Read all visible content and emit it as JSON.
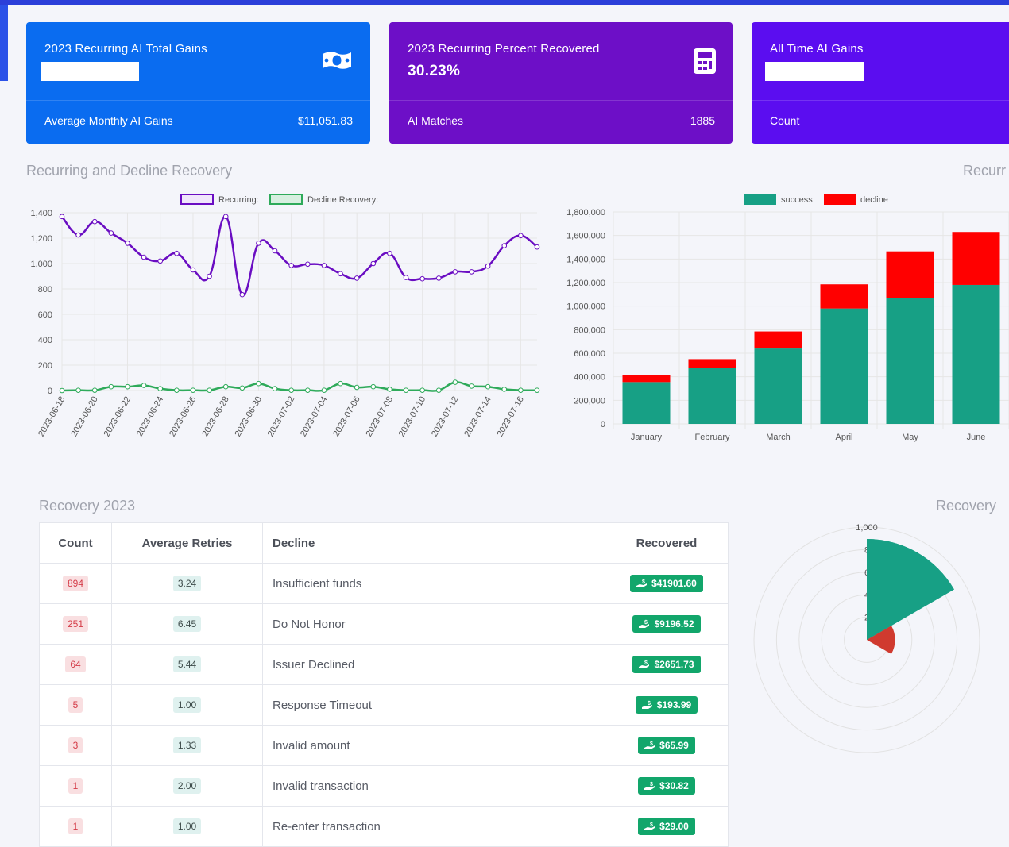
{
  "cards": [
    {
      "title": "2023 Recurring AI Total Gains",
      "value": "",
      "foot_label": "Average Monthly AI Gains",
      "foot_value": "$11,051.83",
      "icon": "money-bill-icon",
      "color": "#0a6cf0"
    },
    {
      "title": "2023 Recurring Percent Recovered",
      "value": "30.23%",
      "foot_label": "AI Matches",
      "foot_value": "1885",
      "icon": "calculator-icon",
      "color": "#6d0fc7"
    },
    {
      "title": "All Time AI Gains",
      "value": "",
      "foot_label": "Count",
      "foot_value": "",
      "icon": "",
      "color": "#5b0df0"
    }
  ],
  "sections": {
    "line_title": "Recurring and Decline Recovery",
    "bar_title": "Recurr",
    "table_title": "Recovery 2023",
    "polar_title": "Recovery"
  },
  "chart_data": [
    {
      "type": "line",
      "legend": [
        "Recurring:",
        "Decline Recovery:"
      ],
      "x": [
        "2023-06-18",
        "2023-06-19",
        "2023-06-20",
        "2023-06-21",
        "2023-06-22",
        "2023-06-23",
        "2023-06-24",
        "2023-06-25",
        "2023-06-26",
        "2023-06-27",
        "2023-06-28",
        "2023-06-29",
        "2023-06-30",
        "2023-07-01",
        "2023-07-02",
        "2023-07-03",
        "2023-07-04",
        "2023-07-05",
        "2023-07-06",
        "2023-07-07",
        "2023-07-08",
        "2023-07-09",
        "2023-07-10",
        "2023-07-11",
        "2023-07-12",
        "2023-07-13",
        "2023-07-14",
        "2023-07-15",
        "2023-07-16",
        "2023-07-17"
      ],
      "x_tick_labels": [
        "2023-06-18",
        "2023-06-20",
        "2023-06-22",
        "2023-06-24",
        "2023-06-26",
        "2023-06-28",
        "2023-06-30",
        "2023-07-02",
        "2023-07-04",
        "2023-07-06",
        "2023-07-08",
        "2023-07-10",
        "2023-07-12",
        "2023-07-14",
        "2023-07-16"
      ],
      "y_ticks": [
        "0",
        "200",
        "400",
        "600",
        "800",
        "1,000",
        "1,200",
        "1,400"
      ],
      "ylim": [
        0,
        1400
      ],
      "series": [
        {
          "name": "Recurring:",
          "color": "#6a0dc2",
          "values": [
            1370,
            1225,
            1330,
            1240,
            1160,
            1050,
            1020,
            1080,
            950,
            900,
            1370,
            755,
            1160,
            1100,
            985,
            995,
            985,
            920,
            885,
            1000,
            1080,
            890,
            880,
            885,
            935,
            935,
            980,
            1140,
            1220,
            1130
          ]
        },
        {
          "name": "Decline Recovery:",
          "color": "#2eaa5a",
          "values": [
            0,
            2,
            2,
            30,
            30,
            40,
            15,
            2,
            2,
            2,
            30,
            20,
            55,
            15,
            2,
            2,
            2,
            55,
            25,
            30,
            10,
            2,
            2,
            2,
            65,
            35,
            30,
            10,
            2,
            2
          ]
        }
      ],
      "grid": true,
      "legend_position": "top"
    },
    {
      "type": "bar",
      "stacked": true,
      "legend": [
        "success",
        "decline"
      ],
      "categories": [
        "January",
        "February",
        "March",
        "April",
        "May",
        "June"
      ],
      "series": [
        {
          "name": "success",
          "color": "#17a085",
          "values": [
            355000,
            475000,
            640000,
            980000,
            1070000,
            1180000
          ]
        },
        {
          "name": "decline",
          "color": "#ff0000",
          "values": [
            60000,
            75000,
            145000,
            205000,
            395000,
            450000
          ]
        }
      ],
      "y_ticks": [
        "0",
        "200,000",
        "400,000",
        "600,000",
        "800,000",
        "1,000,000",
        "1,200,000",
        "1,400,000",
        "1,600,000",
        "1,800,000"
      ],
      "ylim": [
        0,
        1800000
      ],
      "grid": true,
      "legend_position": "top"
    },
    {
      "type": "polar",
      "r_ticks": [
        "1,000",
        "8",
        "6",
        "4",
        "2"
      ],
      "rlim": [
        0,
        1000
      ],
      "slices": [
        {
          "value": 894,
          "color": "#17a085"
        },
        {
          "value": 251,
          "color": "#d03a2f"
        }
      ]
    }
  ],
  "table": {
    "columns": [
      "Count",
      "Average Retries",
      "Decline",
      "Recovered"
    ],
    "rows": [
      {
        "count": "894",
        "retries": "3.24",
        "decline": "Insufficient funds",
        "recovered": "$41901.60"
      },
      {
        "count": "251",
        "retries": "6.45",
        "decline": "Do Not Honor",
        "recovered": "$9196.52"
      },
      {
        "count": "64",
        "retries": "5.44",
        "decline": "Issuer Declined",
        "recovered": "$2651.73"
      },
      {
        "count": "5",
        "retries": "1.00",
        "decline": "Response Timeout",
        "recovered": "$193.99"
      },
      {
        "count": "3",
        "retries": "1.33",
        "decline": "Invalid amount",
        "recovered": "$65.99"
      },
      {
        "count": "1",
        "retries": "2.00",
        "decline": "Invalid transaction",
        "recovered": "$30.82"
      },
      {
        "count": "1",
        "retries": "1.00",
        "decline": "Re-enter transaction",
        "recovered": "$29.00"
      }
    ]
  }
}
